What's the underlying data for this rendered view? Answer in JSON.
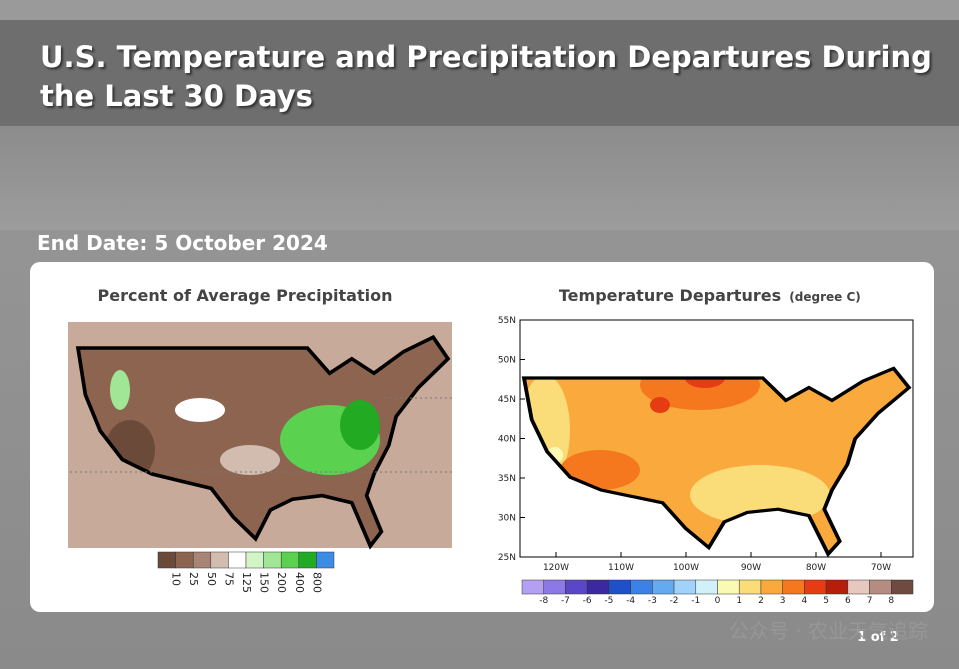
{
  "header": {
    "title_line1": "U.S. Temperature and Precipitation Departures During",
    "title_line2": "the Last 30 Days",
    "end_date": "End Date: 5 October 2024"
  },
  "precip_map": {
    "title": "Percent of Average Precipitation",
    "legend_labels": [
      10,
      25,
      50,
      75,
      125,
      150,
      200,
      400,
      800
    ],
    "legend_colors": [
      "#6b4a3a",
      "#8c6450",
      "#a88474",
      "#d2bcb0",
      "#ffffff",
      "#d2f5c8",
      "#a0e696",
      "#5ad250",
      "#22aa22",
      "#3c8ce6"
    ]
  },
  "temp_map": {
    "title": "Temperature Departures",
    "unit": "(degree C)",
    "lat_labels": [
      "55N",
      "50N",
      "45N",
      "40N",
      "35N",
      "30N",
      "25N"
    ],
    "lon_labels": [
      "120W",
      "110W",
      "100W",
      "90W",
      "80W",
      "70W"
    ],
    "legend_labels": [
      -8,
      -7,
      -6,
      -5,
      -4,
      -3,
      -2,
      -1,
      0,
      1,
      2,
      3,
      4,
      5,
      6,
      7,
      8
    ],
    "legend_colors": [
      "#b4a0f0",
      "#8c78e6",
      "#5a46c8",
      "#3c28a0",
      "#1e50c8",
      "#3c82e6",
      "#64aaf0",
      "#a0d2fa",
      "#d2f0fa",
      "#fafab4",
      "#fadc78",
      "#faaa3c",
      "#f5781e",
      "#e63c14",
      "#b41e0a",
      "#e6c8c0",
      "#b48c82",
      "#6e4a40"
    ]
  },
  "footer": {
    "page": "1 of 2",
    "watermark": "公众号 · 农业天气追踪"
  }
}
